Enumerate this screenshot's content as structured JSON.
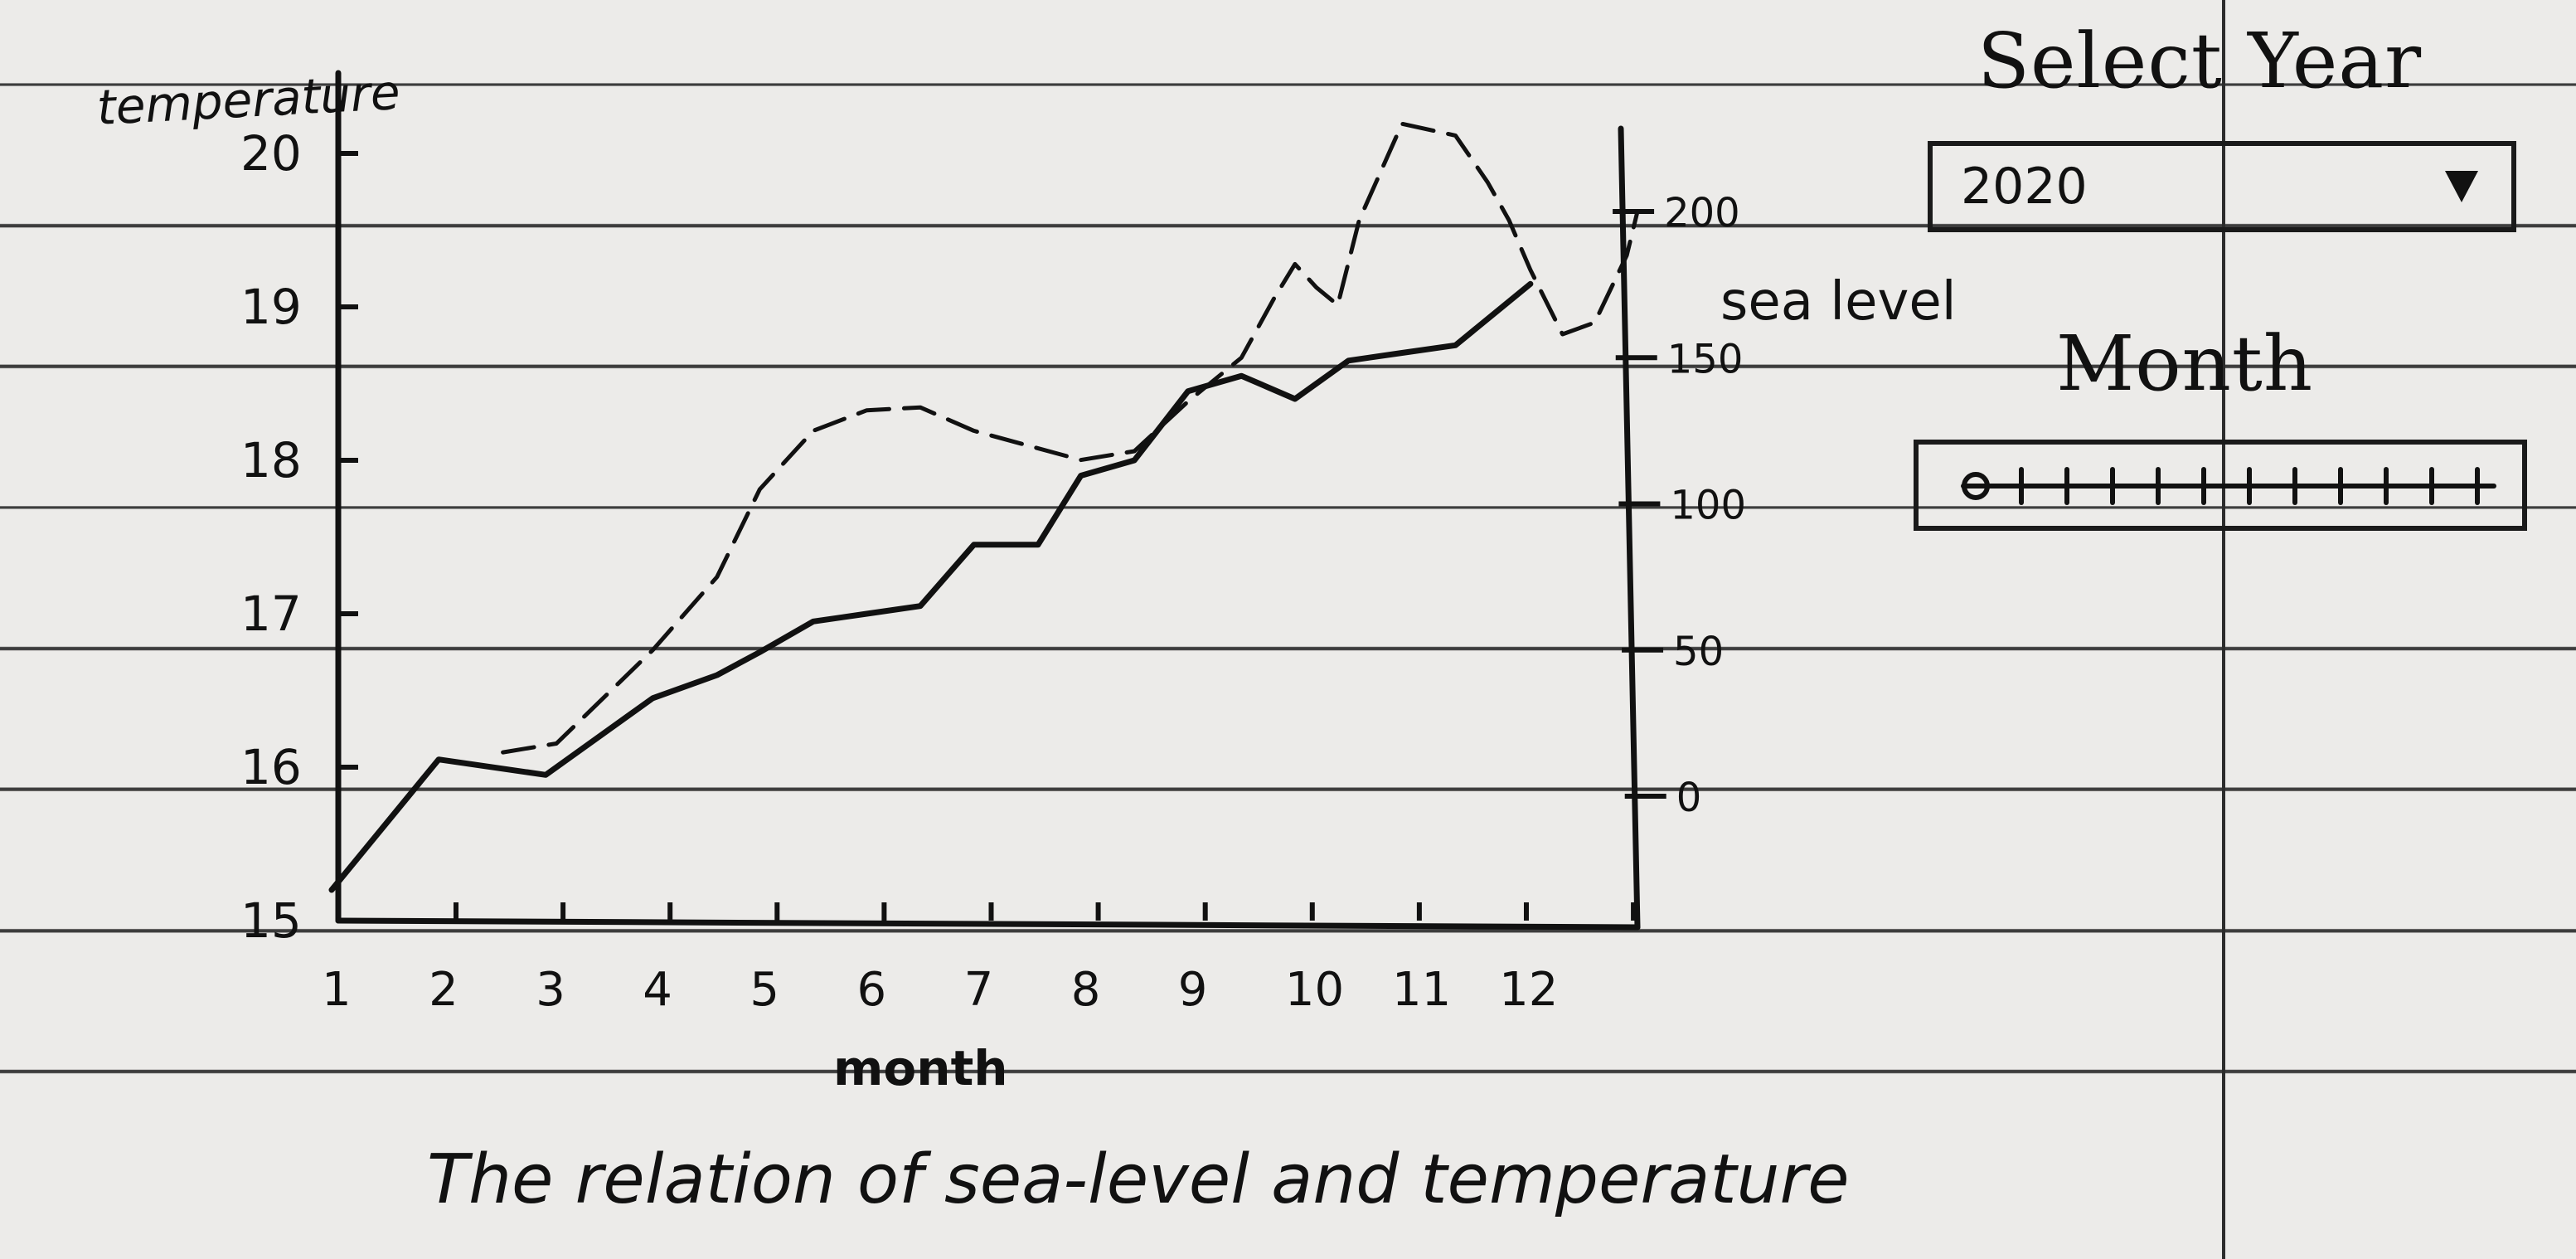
{
  "chart_data": {
    "type": "line",
    "title": "The relation of sea-level and temperature",
    "xlabel": "month",
    "ylabel": "temperature",
    "y2label": "sea level",
    "x": [
      1,
      2,
      3,
      4,
      5,
      6,
      7,
      8,
      9,
      10,
      11,
      12
    ],
    "xlim": [
      1,
      13.2
    ],
    "ylim": [
      15,
      20
    ],
    "y2lim": [
      0,
      200
    ],
    "yticks": [
      15,
      16,
      17,
      18,
      19,
      20
    ],
    "y2ticks": [
      0,
      50,
      100,
      150,
      200
    ],
    "series": [
      {
        "axis": "left",
        "style": "solid",
        "points": [
          [
            1,
            15.2
          ],
          [
            2,
            16.05
          ],
          [
            3,
            15.95
          ],
          [
            4,
            16.45
          ],
          [
            4.6,
            16.6
          ],
          [
            5,
            16.75
          ],
          [
            5.5,
            16.95
          ],
          [
            6,
            17.0
          ],
          [
            6.5,
            17.05
          ],
          [
            7,
            17.45
          ],
          [
            7.6,
            17.45
          ],
          [
            8,
            17.9
          ],
          [
            8.5,
            18.0
          ],
          [
            9,
            18.45
          ],
          [
            9.5,
            18.55
          ],
          [
            10,
            18.4
          ],
          [
            10.5,
            18.65
          ],
          [
            11,
            18.7
          ],
          [
            11.5,
            18.75
          ],
          [
            12.2,
            19.15
          ]
        ]
      },
      {
        "axis": "right",
        "style": "dashed",
        "points": [
          [
            2.6,
            15
          ],
          [
            3.1,
            18
          ],
          [
            4,
            50
          ],
          [
            4.6,
            75
          ],
          [
            5,
            105
          ],
          [
            5.5,
            125
          ],
          [
            6,
            132
          ],
          [
            6.5,
            133
          ],
          [
            7,
            125
          ],
          [
            7.5,
            120
          ],
          [
            8,
            115
          ],
          [
            8.5,
            118
          ],
          [
            9,
            135
          ],
          [
            9.5,
            150
          ],
          [
            9.8,
            170
          ],
          [
            10,
            182
          ],
          [
            10.2,
            174
          ],
          [
            10.4,
            168
          ],
          [
            10.6,
            197
          ],
          [
            11,
            230
          ],
          [
            11.5,
            226
          ],
          [
            11.8,
            210
          ],
          [
            12,
            197
          ],
          [
            12.2,
            180
          ],
          [
            12.5,
            158
          ],
          [
            12.8,
            162
          ],
          [
            13.1,
            185
          ],
          [
            13.2,
            200
          ]
        ]
      }
    ]
  },
  "controls": {
    "select_year_label": "Select Year",
    "year_value": "2020",
    "month_label": "Month"
  }
}
